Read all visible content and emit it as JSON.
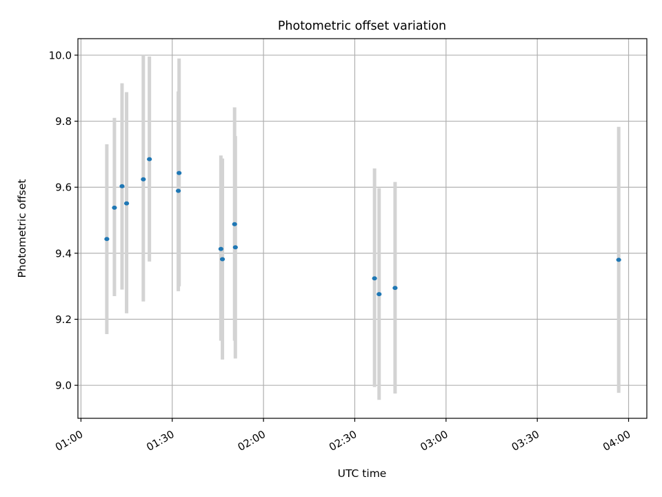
{
  "chart_data": {
    "type": "scatter",
    "title": "Photometric offset variation",
    "xlabel": "UTC time",
    "ylabel": "Photometric offset",
    "x_ticks": [
      "01:00",
      "01:30",
      "02:00",
      "02:30",
      "03:00",
      "03:30",
      "04:00"
    ],
    "y_ticks": [
      "9.0",
      "9.2",
      "9.4",
      "9.6",
      "9.8",
      "10.0"
    ],
    "xlim": [
      "00:59",
      "04:06"
    ],
    "ylim": [
      8.9,
      10.05
    ],
    "grid": true,
    "colors": {
      "point": "#1f77b4",
      "errorbar": "#d3d3d3",
      "grid": "#b0b0b0"
    },
    "points": [
      {
        "t": "01:08:30",
        "y": 9.443,
        "lo": 9.155,
        "hi": 9.73
      },
      {
        "t": "01:11:00",
        "y": 9.538,
        "lo": 9.27,
        "hi": 9.81
      },
      {
        "t": "01:13:30",
        "y": 9.603,
        "lo": 9.29,
        "hi": 9.915
      },
      {
        "t": "01:15:00",
        "y": 9.551,
        "lo": 9.218,
        "hi": 9.888
      },
      {
        "t": "01:20:30",
        "y": 9.624,
        "lo": 9.254,
        "hi": 10.0
      },
      {
        "t": "01:22:30",
        "y": 9.685,
        "lo": 9.375,
        "hi": 9.996
      },
      {
        "t": "01:32:00",
        "y": 9.589,
        "lo": 9.285,
        "hi": 9.89
      },
      {
        "t": "01:32:15",
        "y": 9.643,
        "lo": 9.3,
        "hi": 9.99
      },
      {
        "t": "01:46:00",
        "y": 9.413,
        "lo": 9.135,
        "hi": 9.696
      },
      {
        "t": "01:46:30",
        "y": 9.382,
        "lo": 9.078,
        "hi": 9.687
      },
      {
        "t": "01:50:30",
        "y": 9.488,
        "lo": 9.135,
        "hi": 9.842
      },
      {
        "t": "01:50:45",
        "y": 9.418,
        "lo": 9.081,
        "hi": 9.755
      },
      {
        "t": "02:36:30",
        "y": 9.324,
        "lo": 8.995,
        "hi": 9.657
      },
      {
        "t": "02:38:00",
        "y": 9.276,
        "lo": 8.956,
        "hi": 9.597
      },
      {
        "t": "02:43:15",
        "y": 9.295,
        "lo": 8.975,
        "hi": 9.616
      },
      {
        "t": "03:56:45",
        "y": 9.38,
        "lo": 8.977,
        "hi": 9.783
      }
    ]
  }
}
